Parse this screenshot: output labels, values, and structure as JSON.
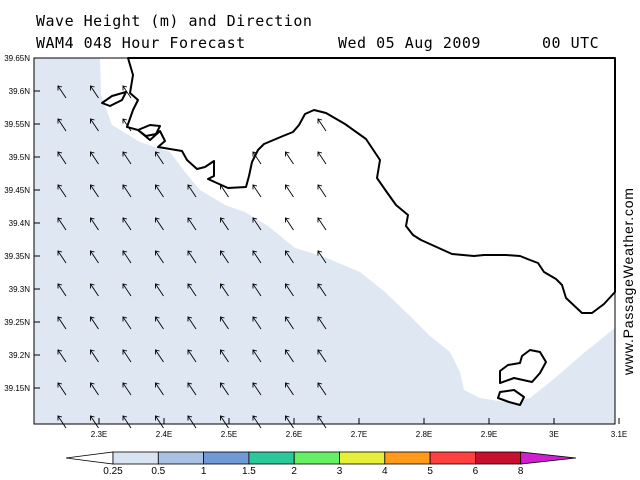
{
  "header": {
    "title": "Wave Height (m) and Direction",
    "subtitle": "WAM4 048 Hour Forecast",
    "date": "Wed 05 Aug 2009",
    "time": "00 UTC"
  },
  "watermark": "www.PassageWeather.com",
  "map": {
    "lat_labels": [
      "39.65N",
      "39.6N",
      "39.55N",
      "39.5N",
      "39.45N",
      "39.4N",
      "39.35N",
      "39.3N",
      "39.25N",
      "39.2N",
      "39.15N"
    ],
    "lon_labels": [
      "2.3E",
      "2.4E",
      "2.5E",
      "2.6E",
      "2.7E",
      "2.8E",
      "2.9E",
      "3E",
      "3.1E"
    ],
    "lat_range": [
      39.1,
      39.65
    ],
    "lon_range": [
      2.2,
      3.1
    ],
    "sea_color": "#dfe7f3",
    "land_color": "#ffffff",
    "arrow_direction": "north-northwest"
  },
  "legend": {
    "labels": [
      "0.25",
      "0.5",
      "1",
      "1.5",
      "2",
      "3",
      "4",
      "5",
      "6",
      "8"
    ],
    "colors": [
      "#ffffff",
      "#d8e4f2",
      "#a9c2e4",
      "#6f9ad6",
      "#2dc79c",
      "#66f066",
      "#e6f03a",
      "#ff9a1a",
      "#ff4040",
      "#c8102e",
      "#d21ed2"
    ]
  }
}
